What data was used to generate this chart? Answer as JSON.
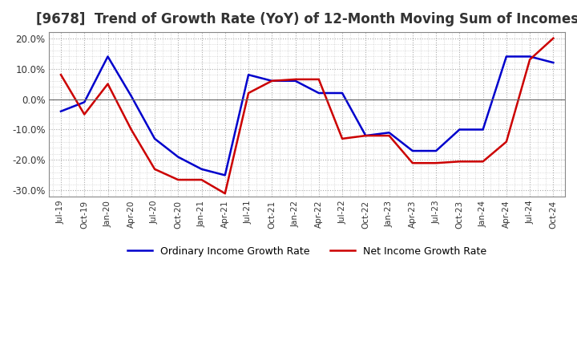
{
  "title": "[9678]  Trend of Growth Rate (YoY) of 12-Month Moving Sum of Incomes",
  "title_fontsize": 12,
  "title_color": "#333333",
  "ylim": [
    -0.32,
    0.22
  ],
  "yticks": [
    -0.3,
    -0.2,
    -0.1,
    0.0,
    0.1,
    0.2
  ],
  "ytick_labels": [
    "-30.0%",
    "-20.0%",
    "-10.0%",
    "0.0%",
    "10.0%",
    "20.0%"
  ],
  "background_color": "#ffffff",
  "grid_color": "#aaaaaa",
  "ordinary_color": "#0000cc",
  "net_color": "#cc0000",
  "legend_labels": [
    "Ordinary Income Growth Rate",
    "Net Income Growth Rate"
  ],
  "x_labels": [
    "Jul-19",
    "Oct-19",
    "Jan-20",
    "Apr-20",
    "Jul-20",
    "Oct-20",
    "Jan-21",
    "Apr-21",
    "Jul-21",
    "Oct-21",
    "Jan-22",
    "Apr-22",
    "Jul-22",
    "Oct-22",
    "Jan-23",
    "Apr-23",
    "Jul-23",
    "Oct-23",
    "Jan-24",
    "Apr-24",
    "Jul-24",
    "Oct-24"
  ],
  "ordinary_income_growth": [
    -0.04,
    -0.01,
    0.14,
    0.01,
    -0.13,
    -0.19,
    -0.23,
    -0.25,
    0.08,
    0.06,
    0.06,
    0.02,
    0.02,
    -0.12,
    -0.11,
    -0.17,
    -0.17,
    -0.1,
    -0.1,
    0.14,
    0.14,
    0.12
  ],
  "net_income_growth": [
    0.08,
    -0.05,
    0.05,
    -0.1,
    -0.23,
    -0.265,
    -0.265,
    -0.31,
    0.02,
    0.06,
    0.065,
    0.065,
    -0.13,
    -0.12,
    -0.12,
    -0.21,
    -0.21,
    -0.205,
    -0.205,
    -0.14,
    0.13,
    0.2
  ]
}
